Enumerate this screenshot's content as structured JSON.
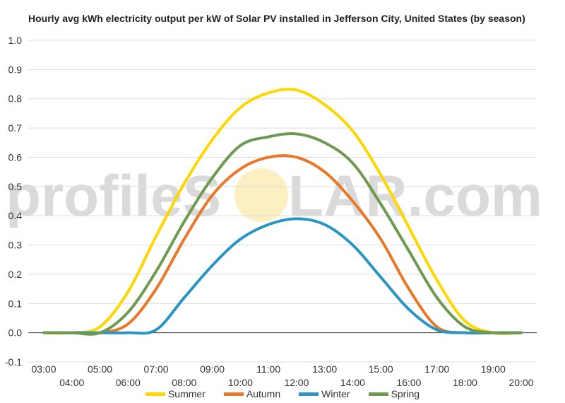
{
  "title": "Hourly avg kWh electricity output per kW of Solar PV installed in Jefferson City, United States (by season)",
  "watermark": {
    "left": "profileS",
    "right": "LAR.com"
  },
  "chart_data": {
    "type": "line",
    "x": [
      "03:00",
      "04:00",
      "05:00",
      "06:00",
      "07:00",
      "08:00",
      "09:00",
      "10:00",
      "11:00",
      "12:00",
      "13:00",
      "14:00",
      "15:00",
      "16:00",
      "17:00",
      "18:00",
      "19:00",
      "20:00"
    ],
    "ylim": [
      -0.1,
      1.0
    ],
    "yticks": [
      -0.1,
      0.0,
      0.1,
      0.2,
      0.3,
      0.4,
      0.5,
      0.6,
      0.7,
      0.8,
      0.9,
      1.0
    ],
    "grid": true,
    "legend": "bottom",
    "series": [
      {
        "name": "Summer",
        "color": "#ffd700",
        "values": [
          0.0,
          0.0,
          0.02,
          0.14,
          0.33,
          0.51,
          0.66,
          0.77,
          0.82,
          0.83,
          0.78,
          0.69,
          0.54,
          0.36,
          0.18,
          0.04,
          0.0,
          0.0
        ]
      },
      {
        "name": "Autumn",
        "color": "#e8782a",
        "values": [
          0.0,
          0.0,
          0.0,
          0.03,
          0.15,
          0.32,
          0.47,
          0.56,
          0.6,
          0.6,
          0.55,
          0.45,
          0.32,
          0.15,
          0.02,
          0.0,
          0.0,
          0.0
        ]
      },
      {
        "name": "Winter",
        "color": "#2b95c4",
        "values": [
          0.0,
          0.0,
          0.0,
          0.0,
          0.01,
          0.12,
          0.23,
          0.32,
          0.37,
          0.39,
          0.37,
          0.3,
          0.19,
          0.08,
          0.01,
          0.0,
          0.0,
          0.0
        ]
      },
      {
        "name": "Spring",
        "color": "#6e9a50",
        "values": [
          0.0,
          0.0,
          0.0,
          0.07,
          0.21,
          0.38,
          0.53,
          0.64,
          0.67,
          0.68,
          0.65,
          0.58,
          0.44,
          0.28,
          0.12,
          0.02,
          0.0,
          0.0
        ]
      }
    ]
  }
}
